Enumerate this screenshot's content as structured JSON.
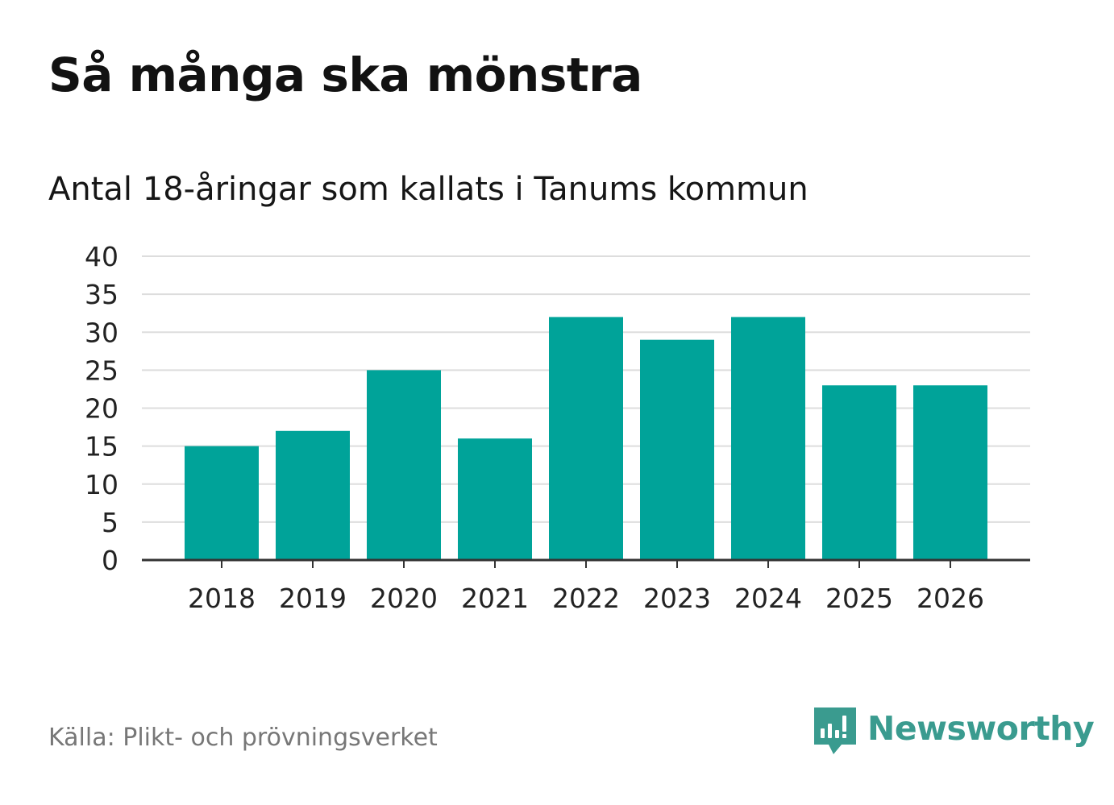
{
  "header": {
    "title": "Så många ska mönstra",
    "subtitle": "Antal 18-åringar som kallats i Tanums kommun"
  },
  "chart_data": {
    "type": "bar",
    "title": "Så många ska mönstra",
    "subtitle": "Antal 18-åringar som kallats i Tanums kommun",
    "xlabel": "",
    "ylabel": "",
    "categories": [
      "2018",
      "2019",
      "2020",
      "2021",
      "2022",
      "2023",
      "2024",
      "2025",
      "2026"
    ],
    "values": [
      15,
      17,
      25,
      16,
      32,
      29,
      32,
      23,
      23
    ],
    "ylim": [
      0,
      40
    ],
    "yticks": [
      0,
      5,
      10,
      15,
      20,
      25,
      30,
      35,
      40
    ],
    "grid": true,
    "legend": "none",
    "bar_color": "#00a399",
    "grid_color": "#dddddd",
    "axis_color": "#333333"
  },
  "footer": {
    "source": "Källa: Plikt- och prövningsverket",
    "brand": "Newsworthy",
    "brand_icon": "newsworthy-logo-icon",
    "brand_color": "#3a9b8f"
  }
}
